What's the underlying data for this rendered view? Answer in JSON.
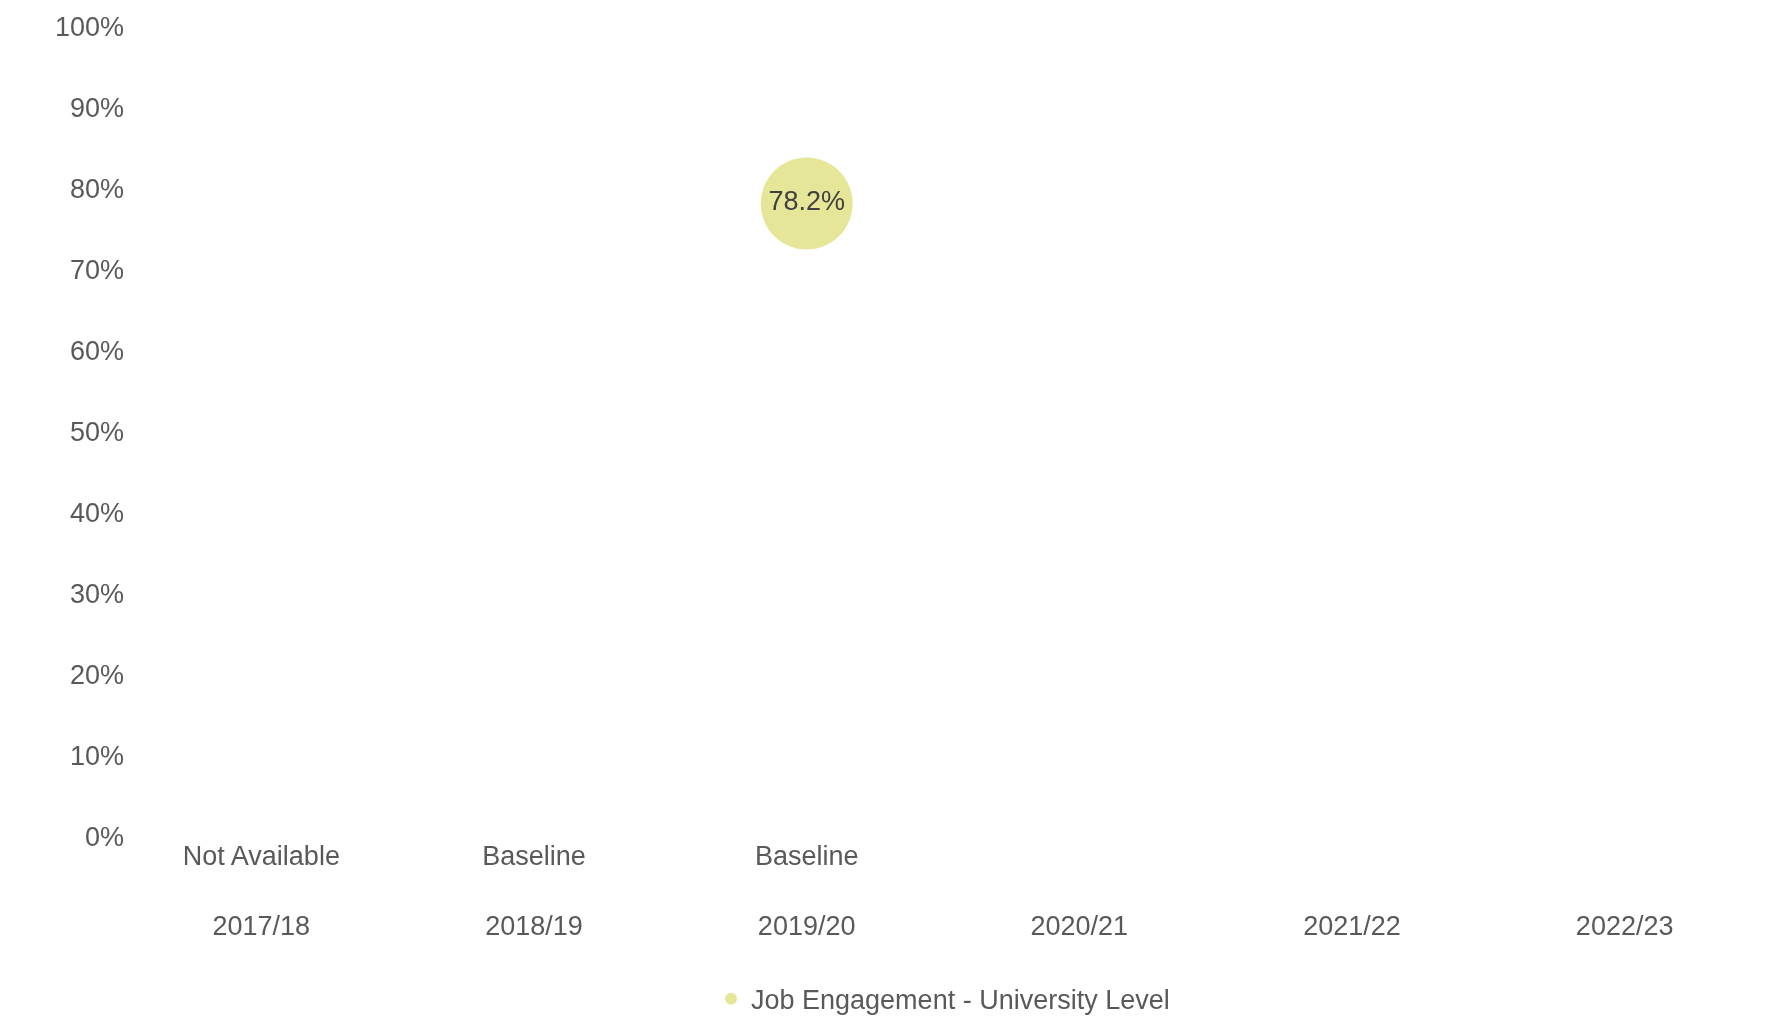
{
  "chart_data": {
    "type": "scatter",
    "categories": [
      "Not Available\n2017/18",
      "Baseline\n2018/19",
      "Baseline\n2019/20",
      "2020/21",
      "2021/22",
      "2022/23"
    ],
    "series": [
      {
        "name": "Job Engagement - University Level",
        "color": "#e6e699",
        "values": [
          null,
          null,
          78.2,
          null,
          null,
          null
        ],
        "value_labels": [
          null,
          null,
          "78.2%",
          null,
          null,
          null
        ]
      }
    ],
    "ylim": [
      0,
      100
    ],
    "yticks": [
      {
        "value": 0,
        "label": "0%"
      },
      {
        "value": 10,
        "label": "10%"
      },
      {
        "value": 20,
        "label": "20%"
      },
      {
        "value": 30,
        "label": "30%"
      },
      {
        "value": 40,
        "label": "40%"
      },
      {
        "value": 50,
        "label": "50%"
      },
      {
        "value": 60,
        "label": "60%"
      },
      {
        "value": 70,
        "label": "70%"
      },
      {
        "value": 80,
        "label": "80%"
      },
      {
        "value": 90,
        "label": "90%"
      },
      {
        "value": 100,
        "label": "100%"
      }
    ],
    "legend": "bottom",
    "marker": "circle"
  }
}
